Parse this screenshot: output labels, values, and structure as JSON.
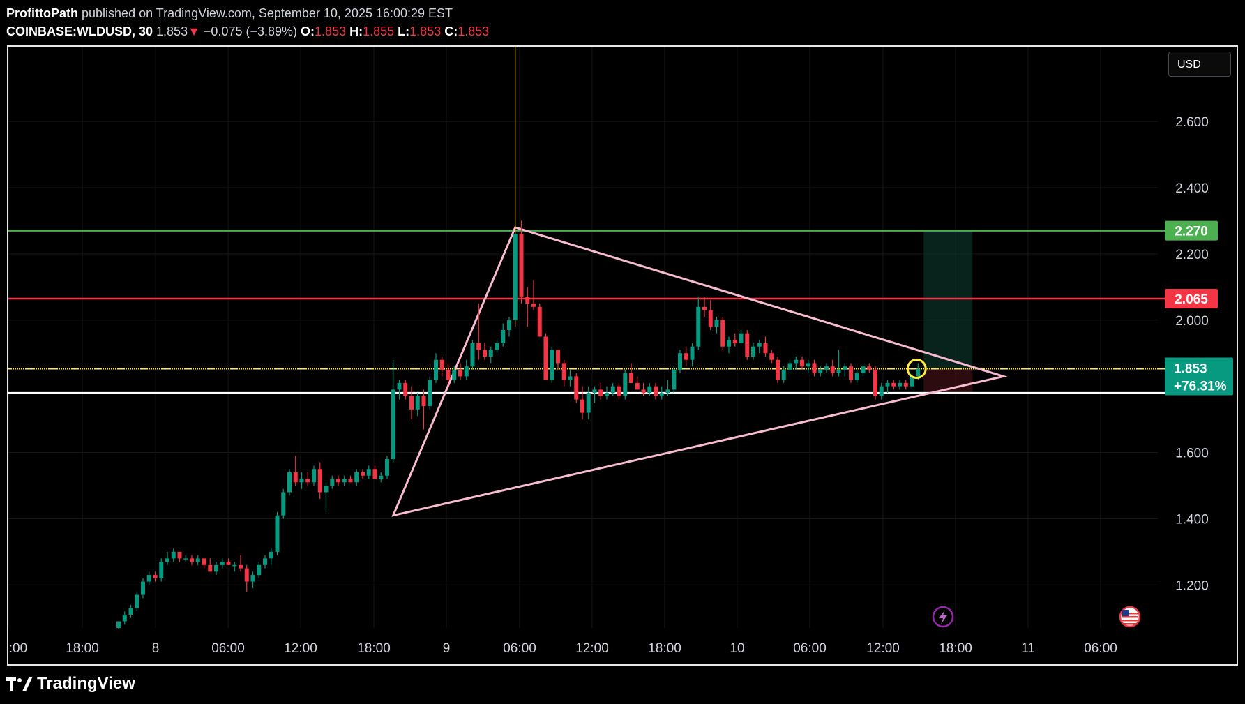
{
  "header": {
    "author": "ProfittoPath",
    "published": "published on TradingView.com, September 10, 2025 16:00:29 EST",
    "symbol": "COINBASE:WLDUSD, 30",
    "last": "1.853",
    "change": "−0.075 (−3.89%)",
    "o_label": "O:",
    "o_value": "1.853",
    "h_label": "H:",
    "h_value": "1.855",
    "l_label": "L:",
    "l_value": "1.853",
    "c_label": "C:",
    "c_value": "1.853"
  },
  "currency_button": "USD",
  "footer": {
    "brand": "TradingView"
  },
  "colors": {
    "up": "#089981",
    "down": "#f23645",
    "target": "#4caf50",
    "resistance": "#f23645",
    "current": "#ffeb3b",
    "support": "#ffffff",
    "triangle": "#f8bbd0",
    "circle": "#ffeb3b"
  },
  "icons": [
    "lightning-icon",
    "us-flag-icon",
    "tradingview-logo-icon"
  ],
  "chart_data": {
    "type": "candlestick",
    "ylim": [
      1.07,
      2.83
    ],
    "y_ticks": [
      "1.200",
      "1.400",
      "1.600",
      "2.000",
      "2.200",
      "2.400",
      "2.600"
    ],
    "x_ticks": [
      ":00",
      "18:00",
      "8",
      "06:00",
      "12:00",
      "18:00",
      "9",
      "06:00",
      "12:00",
      "18:00",
      "10",
      "06:00",
      "12:00",
      "18:00",
      "11",
      "06:00"
    ],
    "candles": [
      [
        1.07,
        1.09,
        1.06,
        1.09
      ],
      [
        1.09,
        1.12,
        1.08,
        1.11
      ],
      [
        1.11,
        1.14,
        1.1,
        1.13
      ],
      [
        1.13,
        1.18,
        1.12,
        1.17
      ],
      [
        1.17,
        1.22,
        1.16,
        1.21
      ],
      [
        1.21,
        1.24,
        1.2,
        1.23
      ],
      [
        1.23,
        1.24,
        1.21,
        1.22
      ],
      [
        1.22,
        1.28,
        1.21,
        1.27
      ],
      [
        1.27,
        1.3,
        1.26,
        1.28
      ],
      [
        1.28,
        1.31,
        1.27,
        1.3
      ],
      [
        1.3,
        1.3,
        1.27,
        1.28
      ],
      [
        1.28,
        1.29,
        1.27,
        1.28
      ],
      [
        1.28,
        1.29,
        1.26,
        1.27
      ],
      [
        1.27,
        1.29,
        1.26,
        1.28
      ],
      [
        1.28,
        1.28,
        1.25,
        1.26
      ],
      [
        1.26,
        1.28,
        1.24,
        1.24
      ],
      [
        1.24,
        1.27,
        1.23,
        1.26
      ],
      [
        1.26,
        1.28,
        1.25,
        1.27
      ],
      [
        1.27,
        1.28,
        1.26,
        1.26
      ],
      [
        1.26,
        1.27,
        1.24,
        1.26
      ],
      [
        1.26,
        1.29,
        1.24,
        1.25
      ],
      [
        1.25,
        1.26,
        1.18,
        1.21
      ],
      [
        1.21,
        1.24,
        1.19,
        1.23
      ],
      [
        1.23,
        1.27,
        1.22,
        1.26
      ],
      [
        1.26,
        1.29,
        1.25,
        1.28
      ],
      [
        1.28,
        1.31,
        1.26,
        1.3
      ],
      [
        1.3,
        1.42,
        1.29,
        1.41
      ],
      [
        1.41,
        1.49,
        1.4,
        1.48
      ],
      [
        1.48,
        1.55,
        1.47,
        1.54
      ],
      [
        1.54,
        1.59,
        1.5,
        1.51
      ],
      [
        1.51,
        1.54,
        1.49,
        1.52
      ],
      [
        1.52,
        1.54,
        1.5,
        1.51
      ],
      [
        1.51,
        1.56,
        1.5,
        1.55
      ],
      [
        1.55,
        1.57,
        1.46,
        1.48
      ],
      [
        1.48,
        1.51,
        1.42,
        1.5
      ],
      [
        1.5,
        1.53,
        1.49,
        1.52
      ],
      [
        1.52,
        1.53,
        1.5,
        1.51
      ],
      [
        1.51,
        1.53,
        1.5,
        1.52
      ],
      [
        1.52,
        1.53,
        1.51,
        1.51
      ],
      [
        1.51,
        1.55,
        1.5,
        1.54
      ],
      [
        1.54,
        1.55,
        1.52,
        1.53
      ],
      [
        1.53,
        1.56,
        1.52,
        1.55
      ],
      [
        1.55,
        1.56,
        1.52,
        1.52
      ],
      [
        1.52,
        1.54,
        1.51,
        1.53
      ],
      [
        1.53,
        1.59,
        1.52,
        1.58
      ],
      [
        1.58,
        1.88,
        1.57,
        1.79
      ],
      [
        1.79,
        1.82,
        1.76,
        1.81
      ],
      [
        1.81,
        1.82,
        1.76,
        1.77
      ],
      [
        1.77,
        1.8,
        1.7,
        1.73
      ],
      [
        1.73,
        1.78,
        1.71,
        1.77
      ],
      [
        1.77,
        1.79,
        1.67,
        1.74
      ],
      [
        1.74,
        1.83,
        1.73,
        1.82
      ],
      [
        1.82,
        1.9,
        1.81,
        1.88
      ],
      [
        1.88,
        1.89,
        1.83,
        1.85
      ],
      [
        1.85,
        1.87,
        1.8,
        1.82
      ],
      [
        1.82,
        1.86,
        1.81,
        1.85
      ],
      [
        1.85,
        1.87,
        1.82,
        1.83
      ],
      [
        1.83,
        1.88,
        1.82,
        1.86
      ],
      [
        1.86,
        1.94,
        1.85,
        1.93
      ],
      [
        1.93,
        2.05,
        1.88,
        1.91
      ],
      [
        1.91,
        1.93,
        1.88,
        1.89
      ],
      [
        1.89,
        1.92,
        1.87,
        1.91
      ],
      [
        1.91,
        1.94,
        1.9,
        1.93
      ],
      [
        1.93,
        1.99,
        1.92,
        1.97
      ],
      [
        1.97,
        2.01,
        1.95,
        2.0
      ],
      [
        2.0,
        2.83,
        1.98,
        2.26
      ],
      [
        2.26,
        2.3,
        2.05,
        2.07
      ],
      [
        2.07,
        2.1,
        1.98,
        2.05
      ],
      [
        2.05,
        2.12,
        2.03,
        2.04
      ],
      [
        2.04,
        2.05,
        1.95,
        1.95
      ],
      [
        1.95,
        1.96,
        1.82,
        1.82
      ],
      [
        1.82,
        1.92,
        1.81,
        1.91
      ],
      [
        1.91,
        1.91,
        1.85,
        1.87
      ],
      [
        1.87,
        1.88,
        1.8,
        1.82
      ],
      [
        1.82,
        1.85,
        1.8,
        1.83
      ],
      [
        1.83,
        1.84,
        1.75,
        1.76
      ],
      [
        1.76,
        1.8,
        1.7,
        1.72
      ],
      [
        1.72,
        1.8,
        1.7,
        1.78
      ],
      [
        1.78,
        1.8,
        1.75,
        1.79
      ],
      [
        1.79,
        1.81,
        1.76,
        1.77
      ],
      [
        1.77,
        1.8,
        1.76,
        1.78
      ],
      [
        1.78,
        1.81,
        1.77,
        1.8
      ],
      [
        1.8,
        1.81,
        1.76,
        1.77
      ],
      [
        1.77,
        1.85,
        1.76,
        1.84
      ],
      [
        1.84,
        1.87,
        1.81,
        1.81
      ],
      [
        1.81,
        1.83,
        1.79,
        1.79
      ],
      [
        1.79,
        1.81,
        1.77,
        1.78
      ],
      [
        1.78,
        1.81,
        1.77,
        1.8
      ],
      [
        1.8,
        1.81,
        1.76,
        1.77
      ],
      [
        1.77,
        1.8,
        1.76,
        1.78
      ],
      [
        1.78,
        1.82,
        1.77,
        1.79
      ],
      [
        1.79,
        1.86,
        1.78,
        1.85
      ],
      [
        1.85,
        1.91,
        1.84,
        1.9
      ],
      [
        1.9,
        1.92,
        1.86,
        1.88
      ],
      [
        1.88,
        1.93,
        1.86,
        1.92
      ],
      [
        1.92,
        2.07,
        1.91,
        2.04
      ],
      [
        2.04,
        2.07,
        2.01,
        2.03
      ],
      [
        2.03,
        2.06,
        1.97,
        1.98
      ],
      [
        1.98,
        2.01,
        1.96,
        2.0
      ],
      [
        2.0,
        2.01,
        1.91,
        1.92
      ],
      [
        1.92,
        1.95,
        1.9,
        1.94
      ],
      [
        1.94,
        1.96,
        1.92,
        1.93
      ],
      [
        1.93,
        1.97,
        1.93,
        1.96
      ],
      [
        1.96,
        1.97,
        1.88,
        1.89
      ],
      [
        1.89,
        1.93,
        1.88,
        1.92
      ],
      [
        1.92,
        1.94,
        1.9,
        1.93
      ],
      [
        1.93,
        1.95,
        1.89,
        1.9
      ],
      [
        1.9,
        1.91,
        1.87,
        1.88
      ],
      [
        1.88,
        1.89,
        1.81,
        1.82
      ],
      [
        1.82,
        1.86,
        1.81,
        1.85
      ],
      [
        1.85,
        1.88,
        1.84,
        1.87
      ],
      [
        1.87,
        1.89,
        1.85,
        1.88
      ],
      [
        1.88,
        1.89,
        1.85,
        1.86
      ],
      [
        1.86,
        1.88,
        1.84,
        1.87
      ],
      [
        1.87,
        1.88,
        1.83,
        1.84
      ],
      [
        1.84,
        1.86,
        1.83,
        1.85
      ],
      [
        1.85,
        1.87,
        1.84,
        1.86
      ],
      [
        1.86,
        1.88,
        1.83,
        1.84
      ],
      [
        1.84,
        1.91,
        1.83,
        1.85
      ],
      [
        1.85,
        1.87,
        1.83,
        1.86
      ],
      [
        1.86,
        1.87,
        1.81,
        1.82
      ],
      [
        1.82,
        1.85,
        1.81,
        1.84
      ],
      [
        1.84,
        1.87,
        1.83,
        1.86
      ],
      [
        1.86,
        1.87,
        1.84,
        1.85
      ],
      [
        1.85,
        1.86,
        1.76,
        1.77
      ],
      [
        1.77,
        1.81,
        1.76,
        1.8
      ],
      [
        1.8,
        1.82,
        1.78,
        1.81
      ],
      [
        1.81,
        1.82,
        1.79,
        1.8
      ],
      [
        1.8,
        1.82,
        1.79,
        1.81
      ],
      [
        1.81,
        1.82,
        1.79,
        1.8
      ],
      [
        1.8,
        1.84,
        1.79,
        1.83
      ],
      [
        1.83,
        1.87,
        1.82,
        1.853
      ]
    ],
    "levels": [
      {
        "value": 2.27,
        "label": "2.270",
        "color": "#4caf50"
      },
      {
        "value": 2.065,
        "label": "2.065",
        "color": "#f23645"
      },
      {
        "value": 1.853,
        "label": "1.853",
        "sub": "+76.31%",
        "color": "#ffeb3b"
      },
      {
        "value": 1.78,
        "color": "#ffffff"
      }
    ],
    "triangle": [
      [
        65,
        2.28
      ],
      [
        145,
        1.83
      ],
      [
        45,
        1.41
      ]
    ],
    "position": {
      "target": 2.27,
      "entry": 1.853,
      "stop": 1.78
    }
  }
}
